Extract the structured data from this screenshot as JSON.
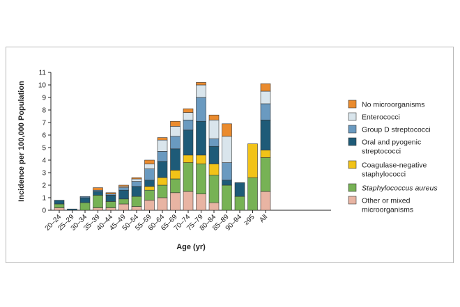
{
  "chart_data": {
    "type": "bar",
    "stacked": true,
    "xlabel": "Age (yr)",
    "ylabel": "Incidence per 100,000 Population",
    "ylim": [
      0,
      11
    ],
    "yticks": [
      0,
      1,
      2,
      3,
      4,
      5,
      6,
      7,
      8,
      9,
      10,
      11
    ],
    "grid": false,
    "legend_position": "right",
    "categories": [
      "20–24",
      "25–29",
      "30–34",
      "35–39",
      "40–44",
      "45–49",
      "50–54",
      "55–59",
      "60–64",
      "65–69",
      "70–74",
      "75–79",
      "80–84",
      "85–89",
      "90–94",
      "≥95",
      "All"
    ],
    "series": [
      {
        "name": "Other or mixed microorganisms",
        "color": "#e8b4a3",
        "values": [
          0.2,
          0.0,
          0.0,
          0.2,
          0.2,
          0.5,
          0.3,
          0.8,
          1.0,
          1.4,
          1.5,
          1.3,
          0.6,
          0.0,
          0.0,
          0.0,
          1.5
        ]
      },
      {
        "name": "Staphylococcus aureus",
        "italic": true,
        "color": "#77b255",
        "values": [
          0.3,
          0.0,
          0.6,
          1.0,
          0.5,
          0.4,
          0.8,
          0.8,
          1.0,
          1.1,
          2.3,
          2.4,
          2.2,
          2.0,
          1.1,
          2.6,
          2.7
        ]
      },
      {
        "name": "Coagulase-negative staphylococci",
        "color": "#f2c318",
        "values": [
          0.0,
          0.0,
          0.0,
          0.0,
          0.0,
          0.0,
          0.0,
          0.3,
          0.6,
          0.7,
          0.6,
          0.7,
          0.9,
          0.0,
          0.0,
          2.7,
          0.6
        ]
      },
      {
        "name": "Oral and pyogenic streptococci",
        "color": "#1e5b78",
        "values": [
          0.3,
          0.1,
          0.4,
          0.3,
          0.5,
          0.7,
          0.8,
          0.5,
          1.3,
          1.7,
          2.0,
          2.7,
          1.4,
          0.4,
          1.1,
          0.0,
          2.4
        ]
      },
      {
        "name": "Group D streptococci",
        "color": "#6a9ac0",
        "values": [
          0.0,
          0.0,
          0.1,
          0.1,
          0.1,
          0.2,
          0.4,
          0.9,
          0.8,
          1.0,
          0.8,
          1.9,
          0.6,
          1.4,
          0.0,
          0.0,
          1.3
        ]
      },
      {
        "name": "Enterococci",
        "color": "#d9e5ec",
        "values": [
          0.0,
          0.0,
          0.0,
          0.0,
          0.0,
          0.1,
          0.2,
          0.4,
          0.9,
          0.8,
          0.6,
          1.0,
          1.5,
          2.1,
          0.0,
          0.0,
          1.0
        ]
      },
      {
        "name": "No microorganisms",
        "color": "#ea8b2e",
        "values": [
          0.0,
          0.0,
          0.0,
          0.2,
          0.1,
          0.1,
          0.1,
          0.3,
          0.2,
          0.4,
          0.3,
          0.2,
          0.4,
          1.0,
          0.0,
          0.0,
          0.6
        ]
      }
    ],
    "legend_order": [
      "No microorganisms",
      "Enterococci",
      "Group D streptococci",
      "Oral and pyogenic streptococci",
      "Coagulase-negative staphylococci",
      "Staphylococcus aureus",
      "Other or mixed microorganisms"
    ],
    "legend_lines": [
      [
        "No microorganisms"
      ],
      [
        "Enterococci"
      ],
      [
        "Group D streptococci"
      ],
      [
        "Oral and pyogenic",
        "streptococci"
      ],
      [
        "Coagulase-negative",
        "staphylococci"
      ],
      [
        "Staphylococcus aureus"
      ],
      [
        "Other or mixed",
        "microorganisms"
      ]
    ]
  }
}
